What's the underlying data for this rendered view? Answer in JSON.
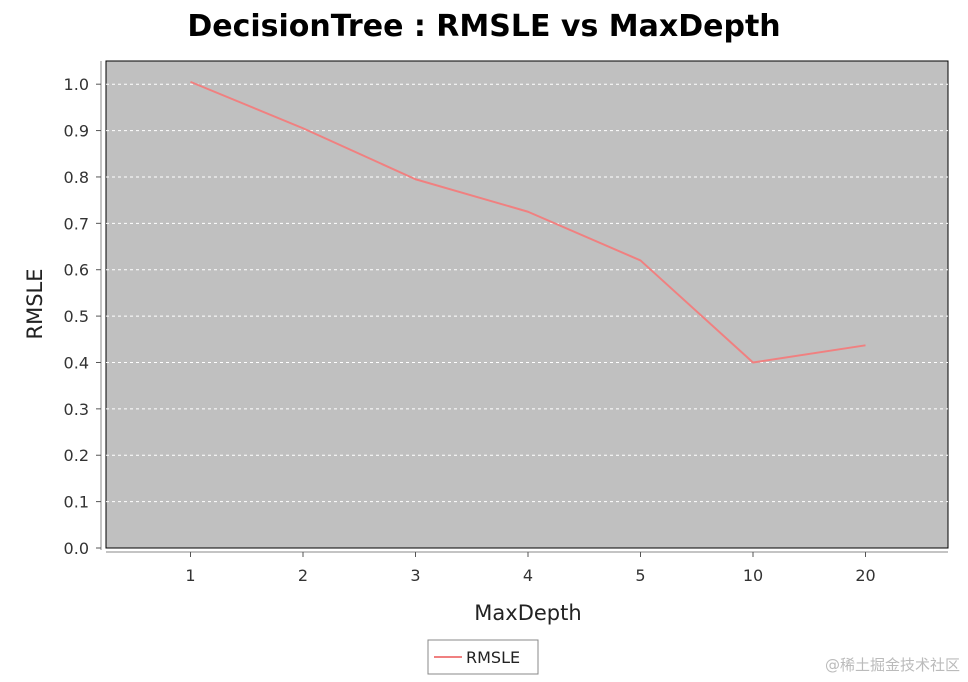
{
  "chart_data": {
    "type": "line",
    "title": "DecisionTree : RMSLE vs MaxDepth",
    "xlabel": "MaxDepth",
    "ylabel": "RMSLE",
    "categories": [
      "1",
      "2",
      "3",
      "4",
      "5",
      "10",
      "20"
    ],
    "series": [
      {
        "name": "RMSLE",
        "values": [
          1.005,
          0.905,
          0.795,
          0.725,
          0.62,
          0.4,
          0.437
        ]
      }
    ],
    "ylim": [
      0,
      1.05
    ],
    "yticks": [
      "0.0",
      "0.1",
      "0.2",
      "0.3",
      "0.4",
      "0.5",
      "0.6",
      "0.7",
      "0.8",
      "0.9",
      "1.0"
    ],
    "grid": true,
    "legend": "bottom-center",
    "colors": {
      "plot_background": "#c0c0c0",
      "gridline": "#ffffff",
      "series": "#f08080"
    }
  },
  "watermark": "@稀土掘金技术社区"
}
